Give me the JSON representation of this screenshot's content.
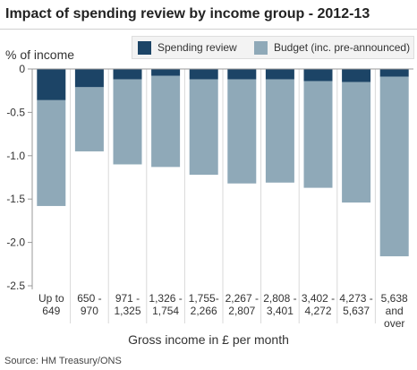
{
  "chart_data": {
    "type": "bar",
    "stacked": true,
    "title": "Impact of spending review by income group - 2012-13",
    "ylabel": "% of income",
    "xlabel": "Gross income in £ per month",
    "ylim": [
      -2.5,
      0
    ],
    "yticks": [
      "0",
      "-0.5",
      "-1.0",
      "-1.5",
      "-2.0",
      "-2.5"
    ],
    "ytick_values": [
      0,
      -0.5,
      -1.0,
      -1.5,
      -2.0,
      -2.5
    ],
    "categories": [
      [
        "Up to",
        "649"
      ],
      [
        "650 -",
        "970"
      ],
      [
        "971 -",
        "1,325"
      ],
      [
        "1,326 -",
        "1,754"
      ],
      [
        "1,755-",
        "2,266"
      ],
      [
        "2,267 -",
        "2,807"
      ],
      [
        "2,808 -",
        "3,401"
      ],
      [
        "3,402 -",
        "4,272"
      ],
      [
        "4,273 -",
        "5,637"
      ],
      [
        "5,638",
        "and",
        "over"
      ]
    ],
    "series": [
      {
        "name": "Spending review",
        "color": "#1c4466",
        "values": [
          -0.36,
          -0.21,
          -0.12,
          -0.08,
          -0.12,
          -0.12,
          -0.12,
          -0.14,
          -0.15,
          -0.09
        ]
      },
      {
        "name": "Budget (inc. pre-announced)",
        "color": "#8fa9b8",
        "values": [
          -1.22,
          -0.74,
          -0.98,
          -1.05,
          -1.1,
          -1.2,
          -1.19,
          -1.23,
          -1.39,
          -2.07
        ]
      }
    ],
    "grid": "vertical separators",
    "legend": "top-right"
  },
  "source": "Source: HM Treasury/ONS"
}
